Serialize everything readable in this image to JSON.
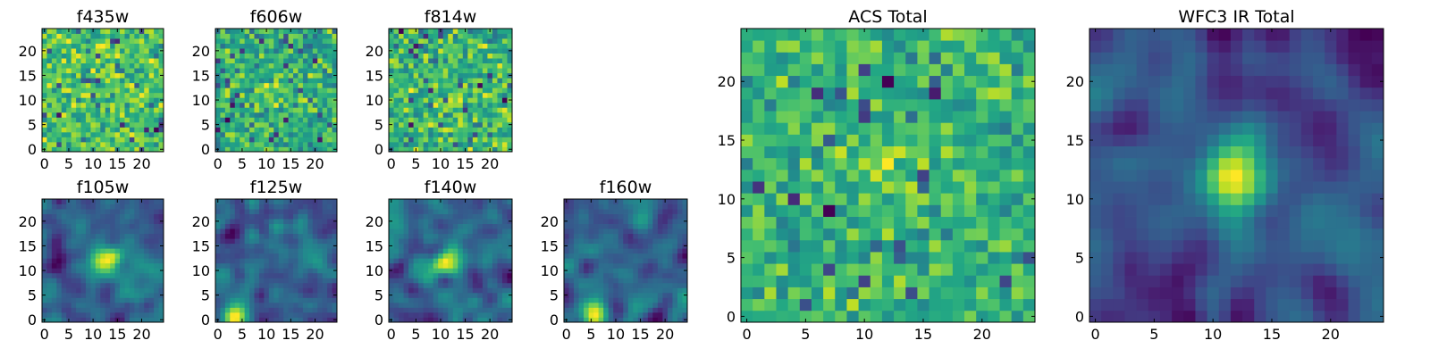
{
  "chart_data": [
    {
      "type": "heatmap",
      "title": "f435w",
      "x_ticks": [
        "0",
        "5",
        "10",
        "15",
        "20"
      ],
      "y_ticks": [
        "0",
        "5",
        "10",
        "15",
        "20"
      ],
      "xlim": [
        -0.5,
        24.5
      ],
      "ylim": [
        -0.5,
        24.5
      ],
      "grid": false,
      "grid_size": 25,
      "colormap": "viridis",
      "seed": 11,
      "smoothness": 0.05,
      "bright_blob": null
    },
    {
      "type": "heatmap",
      "title": "f606w",
      "x_ticks": [
        "0",
        "5",
        "10",
        "15",
        "20"
      ],
      "y_ticks": [
        "0",
        "5",
        "10",
        "15",
        "20"
      ],
      "xlim": [
        -0.5,
        24.5
      ],
      "ylim": [
        -0.5,
        24.5
      ],
      "grid": false,
      "grid_size": 25,
      "colormap": "viridis",
      "seed": 23,
      "smoothness": 0.1,
      "bright_blob": {
        "x": 11,
        "y": 11,
        "strength": 0.15
      }
    },
    {
      "type": "heatmap",
      "title": "f814w",
      "x_ticks": [
        "0",
        "5",
        "10",
        "15",
        "20"
      ],
      "y_ticks": [
        "0",
        "5",
        "10",
        "15",
        "20"
      ],
      "xlim": [
        -0.5,
        24.5
      ],
      "ylim": [
        -0.5,
        24.5
      ],
      "grid": false,
      "grid_size": 25,
      "colormap": "viridis",
      "seed": 37,
      "smoothness": 0.1,
      "bright_blob": {
        "x": 13,
        "y": 10,
        "strength": 0.15
      }
    },
    {
      "type": "heatmap",
      "title": "f105w",
      "x_ticks": [
        "0",
        "5",
        "10",
        "15",
        "20"
      ],
      "y_ticks": [
        "0",
        "5",
        "10",
        "15",
        "20"
      ],
      "xlim": [
        -0.5,
        24.5
      ],
      "ylim": [
        -0.5,
        24.5
      ],
      "grid": false,
      "grid_size": 25,
      "colormap": "viridis",
      "seed": 41,
      "smoothness": 0.45,
      "bright_blob": {
        "x": 13,
        "y": 12,
        "strength": 0.35
      }
    },
    {
      "type": "heatmap",
      "title": "f125w",
      "x_ticks": [
        "0",
        "5",
        "10",
        "15",
        "20"
      ],
      "y_ticks": [
        "0",
        "5",
        "10",
        "15",
        "20"
      ],
      "xlim": [
        -0.5,
        24.5
      ],
      "ylim": [
        -0.5,
        24.5
      ],
      "grid": false,
      "grid_size": 25,
      "colormap": "viridis",
      "seed": 53,
      "smoothness": 0.45,
      "bright_blob": {
        "x": 4,
        "y": 1,
        "strength": 0.25
      }
    },
    {
      "type": "heatmap",
      "title": "f140w",
      "x_ticks": [
        "0",
        "5",
        "10",
        "15",
        "20"
      ],
      "y_ticks": [
        "0",
        "5",
        "10",
        "15",
        "20"
      ],
      "xlim": [
        -0.5,
        24.5
      ],
      "ylim": [
        -0.5,
        24.5
      ],
      "grid": false,
      "grid_size": 25,
      "colormap": "viridis",
      "seed": 67,
      "smoothness": 0.45,
      "bright_blob": {
        "x": 11,
        "y": 12,
        "strength": 0.3
      }
    },
    {
      "type": "heatmap",
      "title": "f160w",
      "x_ticks": [
        "0",
        "5",
        "10",
        "15",
        "20"
      ],
      "y_ticks": [
        "0",
        "5",
        "10",
        "15",
        "20"
      ],
      "xlim": [
        -0.5,
        24.5
      ],
      "ylim": [
        -0.5,
        24.5
      ],
      "grid": false,
      "grid_size": 25,
      "colormap": "viridis",
      "seed": 79,
      "smoothness": 0.5,
      "bright_blob": {
        "x": 5,
        "y": 1,
        "strength": 0.35
      }
    },
    {
      "type": "heatmap",
      "title": "ACS Total",
      "x_ticks": [
        "0",
        "5",
        "10",
        "15",
        "20"
      ],
      "y_ticks": [
        "0",
        "5",
        "10",
        "15",
        "20"
      ],
      "xlim": [
        -0.5,
        24.5
      ],
      "ylim": [
        -0.5,
        24.5
      ],
      "grid": false,
      "grid_size": 25,
      "colormap": "viridis",
      "seed": 97,
      "smoothness": 0.1,
      "bright_blob": {
        "x": 12,
        "y": 12,
        "strength": 0.2
      }
    },
    {
      "type": "heatmap",
      "title": "WFC3 IR Total",
      "x_ticks": [
        "0",
        "5",
        "10",
        "15",
        "20"
      ],
      "y_ticks": [
        "0",
        "5",
        "10",
        "15",
        "20"
      ],
      "xlim": [
        -0.5,
        24.5
      ],
      "ylim": [
        -0.5,
        24.5
      ],
      "grid": false,
      "grid_size": 25,
      "colormap": "viridis",
      "seed": 131,
      "smoothness": 0.6,
      "bright_blob": {
        "x": 12,
        "y": 12,
        "strength": 0.45
      }
    }
  ]
}
